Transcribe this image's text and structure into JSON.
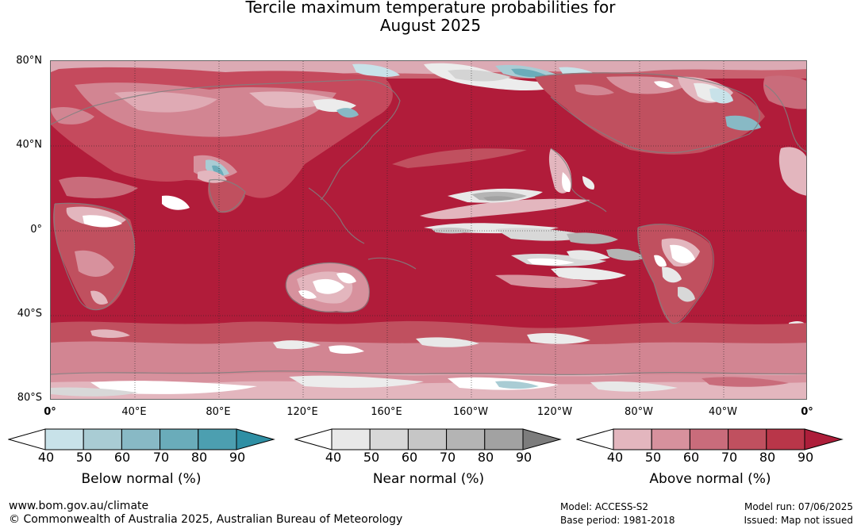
{
  "title_line1": "Tercile maximum temperature probabilities for",
  "title_line2": "August 2025",
  "map": {
    "projection": "equirectangular",
    "central_meridian": "0°",
    "latitude_labels": [
      "80°N",
      "40°N",
      "0°",
      "40°S",
      "80°S"
    ],
    "longitude_labels": [
      "0°",
      "40°E",
      "80°E",
      "120°E",
      "160°E",
      "160°W",
      "120°W",
      "80°W",
      "40°W",
      "0°"
    ],
    "colors": {
      "ocean_dominant": "#b11c3a",
      "land_above": "#c63c52",
      "near_normal": "#a9a9a9",
      "below_normal": "#4d9fb1",
      "coastline": "#808080"
    }
  },
  "colorbars": [
    {
      "id": "below",
      "label": "Below normal (%)",
      "ticks": [
        "40",
        "50",
        "60",
        "70",
        "80",
        "90"
      ],
      "colors": [
        "#ffffff",
        "#c8e2e9",
        "#a9ccd4",
        "#88b9c5",
        "#6aacba",
        "#4c9fb0",
        "#2f8fa4"
      ]
    },
    {
      "id": "near",
      "label": "Near normal (%)",
      "ticks": [
        "40",
        "50",
        "60",
        "70",
        "80",
        "90"
      ],
      "colors": [
        "#ffffff",
        "#e8e8e8",
        "#d8d8d8",
        "#c6c6c6",
        "#b4b4b4",
        "#a2a2a2",
        "#7c7c7c"
      ]
    },
    {
      "id": "above",
      "label": "Above normal (%)",
      "ticks": [
        "40",
        "50",
        "60",
        "70",
        "80",
        "90"
      ],
      "colors": [
        "#ffffff",
        "#e3b6be",
        "#d7919d",
        "#c96c7b",
        "#c0505f",
        "#b93649",
        "#ad1e3a"
      ]
    }
  ],
  "footer": {
    "website": "www.bom.gov.au/climate",
    "copyright": "© Commonwealth of Australia 2025, Australian Bureau of Meteorology",
    "model": "Model: ACCESS-S2",
    "base_period": "Base period: 1981-2018",
    "model_run": "Model run: 07/06/2025",
    "issued": "Issued: Map not issued"
  }
}
